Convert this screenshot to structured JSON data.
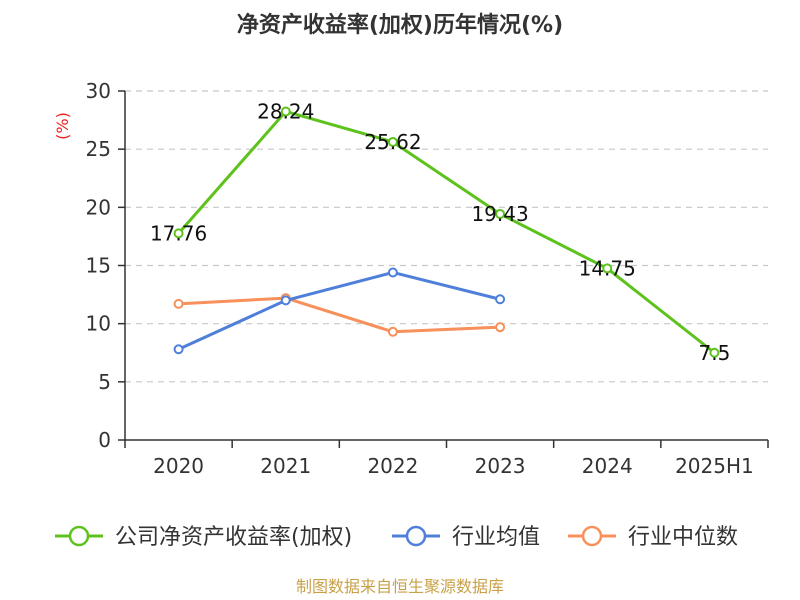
{
  "chart_data": {
    "type": "line",
    "title": "净资产收益率(加权)历年情况(%)",
    "ylabel": "(%)",
    "categories": [
      "2020",
      "2021",
      "2022",
      "2023",
      "2024",
      "2025H1"
    ],
    "ylim": [
      0,
      30
    ],
    "yticks": [
      0,
      5,
      10,
      15,
      20,
      25,
      30
    ],
    "grid": true,
    "legend_position": "bottom",
    "series": [
      {
        "name": "公司净资产收益率(加权)",
        "color": "#5ec21d",
        "values": [
          17.76,
          28.24,
          25.62,
          19.43,
          14.75,
          7.5
        ],
        "labels": [
          "17.76",
          "28.24",
          "25.62",
          "19.43",
          "14.75",
          "7.5"
        ]
      },
      {
        "name": "行业均值",
        "color": "#4f7fd9",
        "values": [
          7.8,
          12.0,
          14.4,
          12.1,
          null,
          null
        ]
      },
      {
        "name": "行业中位数",
        "color": "#f7905a",
        "values": [
          11.7,
          12.2,
          9.3,
          9.7,
          null,
          null
        ]
      }
    ]
  },
  "footer": {
    "source": "制图数据来自恒生聚源数据库"
  }
}
